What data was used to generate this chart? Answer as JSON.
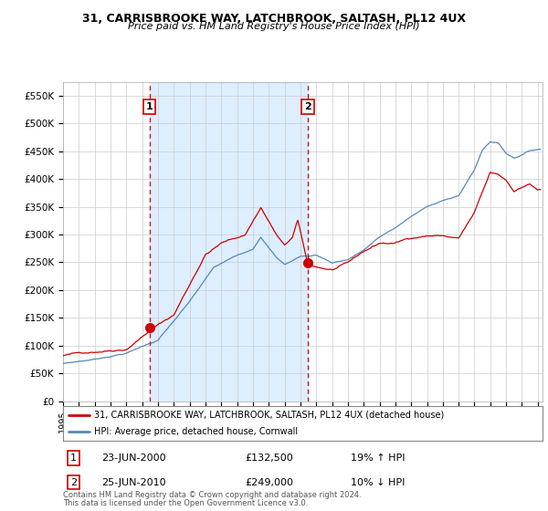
{
  "title": "31, CARRISBROOKE WAY, LATCHBROOK, SALTASH, PL12 4UX",
  "subtitle": "Price paid vs. HM Land Registry's House Price Index (HPI)",
  "ylim": [
    0,
    575000
  ],
  "yticks": [
    0,
    50000,
    100000,
    150000,
    200000,
    250000,
    300000,
    350000,
    400000,
    450000,
    500000,
    550000
  ],
  "ytick_labels": [
    "£0",
    "£50K",
    "£100K",
    "£150K",
    "£200K",
    "£250K",
    "£300K",
    "£350K",
    "£400K",
    "£450K",
    "£500K",
    "£550K"
  ],
  "xlim_start": 1995.0,
  "xlim_end": 2025.3,
  "background_color": "#ffffff",
  "grid_color": "#cccccc",
  "red_line_color": "#cc0000",
  "blue_line_color": "#5588bb",
  "shade_color": "#ddeeff",
  "transaction1_date": 2000.47,
  "transaction1_price": 132500,
  "transaction1_label": "1",
  "transaction1_display": "23-JUN-2000",
  "transaction1_amount": "£132,500",
  "transaction1_hpi": "19% ↑ HPI",
  "transaction2_date": 2010.47,
  "transaction2_price": 249000,
  "transaction2_label": "2",
  "transaction2_display": "25-JUN-2010",
  "transaction2_amount": "£249,000",
  "transaction2_hpi": "10% ↓ HPI",
  "legend_line1": "31, CARRISBROOKE WAY, LATCHBROOK, SALTASH, PL12 4UX (detached house)",
  "legend_line2": "HPI: Average price, detached house, Cornwall",
  "footer1": "Contains HM Land Registry data © Crown copyright and database right 2024.",
  "footer2": "This data is licensed under the Open Government Licence v3.0."
}
